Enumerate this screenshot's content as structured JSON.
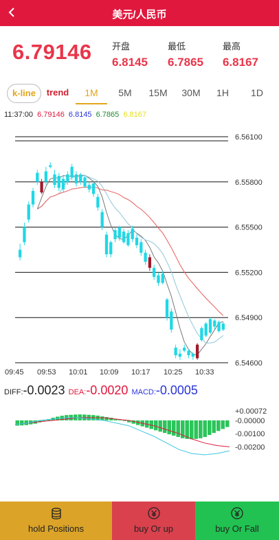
{
  "header": {
    "back_icon": "back-chevron-icon",
    "title": "美元/人民币"
  },
  "quote": {
    "price": "6.79146",
    "open_label": "开盘",
    "open_value": "6.8145",
    "low_label": "最低",
    "low_value": "6.7865",
    "high_label": "最高",
    "high_value": "6.8167",
    "price_color": "#e8354a"
  },
  "tabs": {
    "kline": "k-line",
    "trend": "trend",
    "intervals": [
      "1M",
      "5M",
      "15M",
      "30M",
      "1H",
      "1D"
    ],
    "active": "1M"
  },
  "ohlc_row": {
    "time": "11:37:00",
    "v1": "6.79146",
    "v2": "6.8145",
    "v3": "6.7865",
    "v4": "6.8167"
  },
  "chart_data": {
    "type": "candlestick",
    "y_ticks": [
      "6.56100",
      "6.55800",
      "6.55500",
      "6.55200",
      "6.54900",
      "6.54600"
    ],
    "x_ticks": [
      "09:45",
      "09:53",
      "10:01",
      "10:09",
      "10:17",
      "10:25",
      "10:33"
    ],
    "ylim": [
      6.546,
      6.5615
    ],
    "candles": [
      {
        "o": 6.553,
        "c": 6.5535,
        "h": 6.5539,
        "l": 6.5528
      },
      {
        "o": 6.554,
        "c": 6.555,
        "h": 6.5553,
        "l": 6.5538
      },
      {
        "o": 6.5555,
        "c": 6.5565,
        "h": 6.5567,
        "l": 6.5553
      },
      {
        "o": 6.5565,
        "c": 6.5574,
        "h": 6.5576,
        "l": 6.5563
      },
      {
        "o": 6.558,
        "c": 6.5586,
        "h": 6.5588,
        "l": 6.5578
      },
      {
        "o": 6.558,
        "c": 6.5573,
        "h": 6.5582,
        "l": 6.5572
      },
      {
        "o": 6.558,
        "c": 6.5587,
        "h": 6.559,
        "l": 6.5578
      },
      {
        "o": 6.5591,
        "c": 6.559,
        "h": 6.5593,
        "l": 6.5589
      },
      {
        "o": 6.5585,
        "c": 6.5578,
        "h": 6.5588,
        "l": 6.5576
      },
      {
        "o": 6.5576,
        "c": 6.5584,
        "h": 6.5586,
        "l": 6.5574
      },
      {
        "o": 6.5575,
        "c": 6.5582,
        "h": 6.5584,
        "l": 6.5573
      },
      {
        "o": 6.558,
        "c": 6.5585,
        "h": 6.5587,
        "l": 6.5578
      },
      {
        "o": 6.5583,
        "c": 6.559,
        "h": 6.5592,
        "l": 6.5581
      },
      {
        "o": 6.5585,
        "c": 6.5579,
        "h": 6.5587,
        "l": 6.5577
      },
      {
        "o": 6.558,
        "c": 6.5585,
        "h": 6.5586,
        "l": 6.5578
      },
      {
        "o": 6.5577,
        "c": 6.5583,
        "h": 6.5584,
        "l": 6.5576
      },
      {
        "o": 6.5578,
        "c": 6.5575,
        "h": 6.558,
        "l": 6.5573
      },
      {
        "o": 6.5572,
        "c": 6.5579,
        "h": 6.5581,
        "l": 6.557
      },
      {
        "o": 6.557,
        "c": 6.5563,
        "h": 6.5572,
        "l": 6.5561
      },
      {
        "o": 6.556,
        "c": 6.555,
        "h": 6.5562,
        "l": 6.5548
      },
      {
        "o": 6.5545,
        "c": 6.5532,
        "h": 6.5547,
        "l": 6.553
      },
      {
        "o": 6.554,
        "c": 6.5532,
        "h": 6.5541,
        "l": 6.553
      },
      {
        "o": 6.5542,
        "c": 6.5548,
        "h": 6.555,
        "l": 6.554
      },
      {
        "o": 6.5543,
        "c": 6.555,
        "h": 6.5551,
        "l": 6.5541
      },
      {
        "o": 6.554,
        "c": 6.5547,
        "h": 6.5549,
        "l": 6.5539
      },
      {
        "o": 6.5538,
        "c": 6.5546,
        "h": 6.5548,
        "l": 6.5537
      },
      {
        "o": 6.5542,
        "c": 6.5549,
        "h": 6.5551,
        "l": 6.554
      },
      {
        "o": 6.5543,
        "c": 6.5538,
        "h": 6.5545,
        "l": 6.5536
      },
      {
        "o": 6.5533,
        "c": 6.554,
        "h": 6.5542,
        "l": 6.5531
      },
      {
        "o": 6.5527,
        "c": 6.5533,
        "h": 6.5535,
        "l": 6.5525
      },
      {
        "o": 6.553,
        "c": 6.5523,
        "h": 6.5532,
        "l": 6.5521
      },
      {
        "o": 6.5523,
        "c": 6.5517,
        "h": 6.5525,
        "l": 6.5515
      },
      {
        "o": 6.5513,
        "c": 6.5518,
        "h": 6.552,
        "l": 6.5511
      },
      {
        "o": 6.5519,
        "c": 6.5513,
        "h": 6.5521,
        "l": 6.5512
      },
      {
        "o": 6.5502,
        "c": 6.549,
        "h": 6.5503,
        "l": 6.5488
      },
      {
        "o": 6.5494,
        "c": 6.5482,
        "h": 6.5496,
        "l": 6.548
      },
      {
        "o": 6.547,
        "c": 6.5465,
        "h": 6.5472,
        "l": 6.5463
      },
      {
        "o": 6.5466,
        "c": 6.5464,
        "h": 6.5469,
        "l": 6.5462
      },
      {
        "o": 6.547,
        "c": 6.5468,
        "h": 6.5472,
        "l": 6.5467
      },
      {
        "o": 6.5468,
        "c": 6.5465,
        "h": 6.5469,
        "l": 6.5463
      },
      {
        "o": 6.5464,
        "c": 6.5466,
        "h": 6.5467,
        "l": 6.5462
      },
      {
        "o": 6.5472,
        "c": 6.5463,
        "h": 6.5473,
        "l": 6.5462
      },
      {
        "o": 6.5475,
        "c": 6.5483,
        "h": 6.5484,
        "l": 6.5474
      },
      {
        "o": 6.5478,
        "c": 6.5486,
        "h": 6.5487,
        "l": 6.5477
      },
      {
        "o": 6.548,
        "c": 6.5489,
        "h": 6.549,
        "l": 6.5479
      },
      {
        "o": 6.5484,
        "c": 6.5488,
        "h": 6.5489,
        "l": 6.5482
      },
      {
        "o": 6.5481,
        "c": 6.5487,
        "h": 6.5488,
        "l": 6.548
      },
      {
        "o": 6.5482,
        "c": 6.5486,
        "h": 6.5487,
        "l": 6.5481
      }
    ],
    "red_candle_indices": [
      5,
      30,
      41
    ],
    "colors": {
      "up": "#1fd8e6",
      "down": "#a0192b",
      "ma_red": "#e85a5a",
      "ma_blue": "#8fc7d8",
      "ma_grey": "#777777"
    }
  },
  "macd": {
    "diff_label": "DIFF:",
    "diff_value": "-0.0023",
    "dea_label": "DEA:",
    "dea_value": "-0.0020",
    "macd_label": "MACD:",
    "macd_value": "-0.0005",
    "y_ticks": [
      "+0.00072",
      "-0.00000",
      "-0.00100",
      "-0.00200"
    ],
    "ylim": [
      -0.0026,
      0.00072
    ],
    "histogram": [
      -0.0004,
      -0.00038,
      -0.00036,
      -0.0003,
      -0.00025,
      -0.00015,
      -5e-05,
      0.0001,
      0.0002,
      0.00028,
      0.00035,
      0.0004,
      0.00042,
      0.00044,
      0.00045,
      0.00044,
      0.00042,
      0.0004,
      0.00036,
      0.0003,
      0.00025,
      0.0002,
      0.00012,
      5e-05,
      -5e-05,
      -0.00015,
      -0.00025,
      -0.00035,
      -0.00045,
      -0.00055,
      -0.00065,
      -0.00075,
      -0.00085,
      -0.00095,
      -0.00105,
      -0.00115,
      -0.00125,
      -0.00135,
      -0.0014,
      -0.00142,
      -0.0014,
      -0.00135,
      -0.00125,
      -0.0011,
      -0.00095,
      -0.0008,
      -0.00065,
      -0.0005
    ],
    "dea_line": [
      -0.0003,
      -0.0002,
      -0.0001,
      0.0,
      0.0001,
      0.0002,
      0.0002,
      0.0002,
      0.0001,
      0.0,
      -0.0002,
      -0.0004,
      -0.0007,
      -0.001,
      -0.0014,
      -0.0017,
      -0.0019,
      -0.002
    ],
    "diff_line": [
      -0.0003,
      -0.0002,
      0.0,
      0.0001,
      0.0002,
      0.0002,
      0.0001,
      0.0,
      -0.0002,
      -0.0004,
      -0.0008,
      -0.0012,
      -0.0017,
      -0.0022,
      -0.0025,
      -0.0026,
      -0.0025,
      -0.0023
    ]
  },
  "bottom": {
    "hold_label": "hold Positions",
    "hold_icon": "coins-icon",
    "hold_color": "#dba327",
    "up_label": "buy Or up",
    "up_icon": "yen-up-icon",
    "up_color": "#d9414d",
    "fall_label": "buy Or Fall",
    "fall_icon": "yen-down-icon",
    "fall_color": "#21c251"
  }
}
